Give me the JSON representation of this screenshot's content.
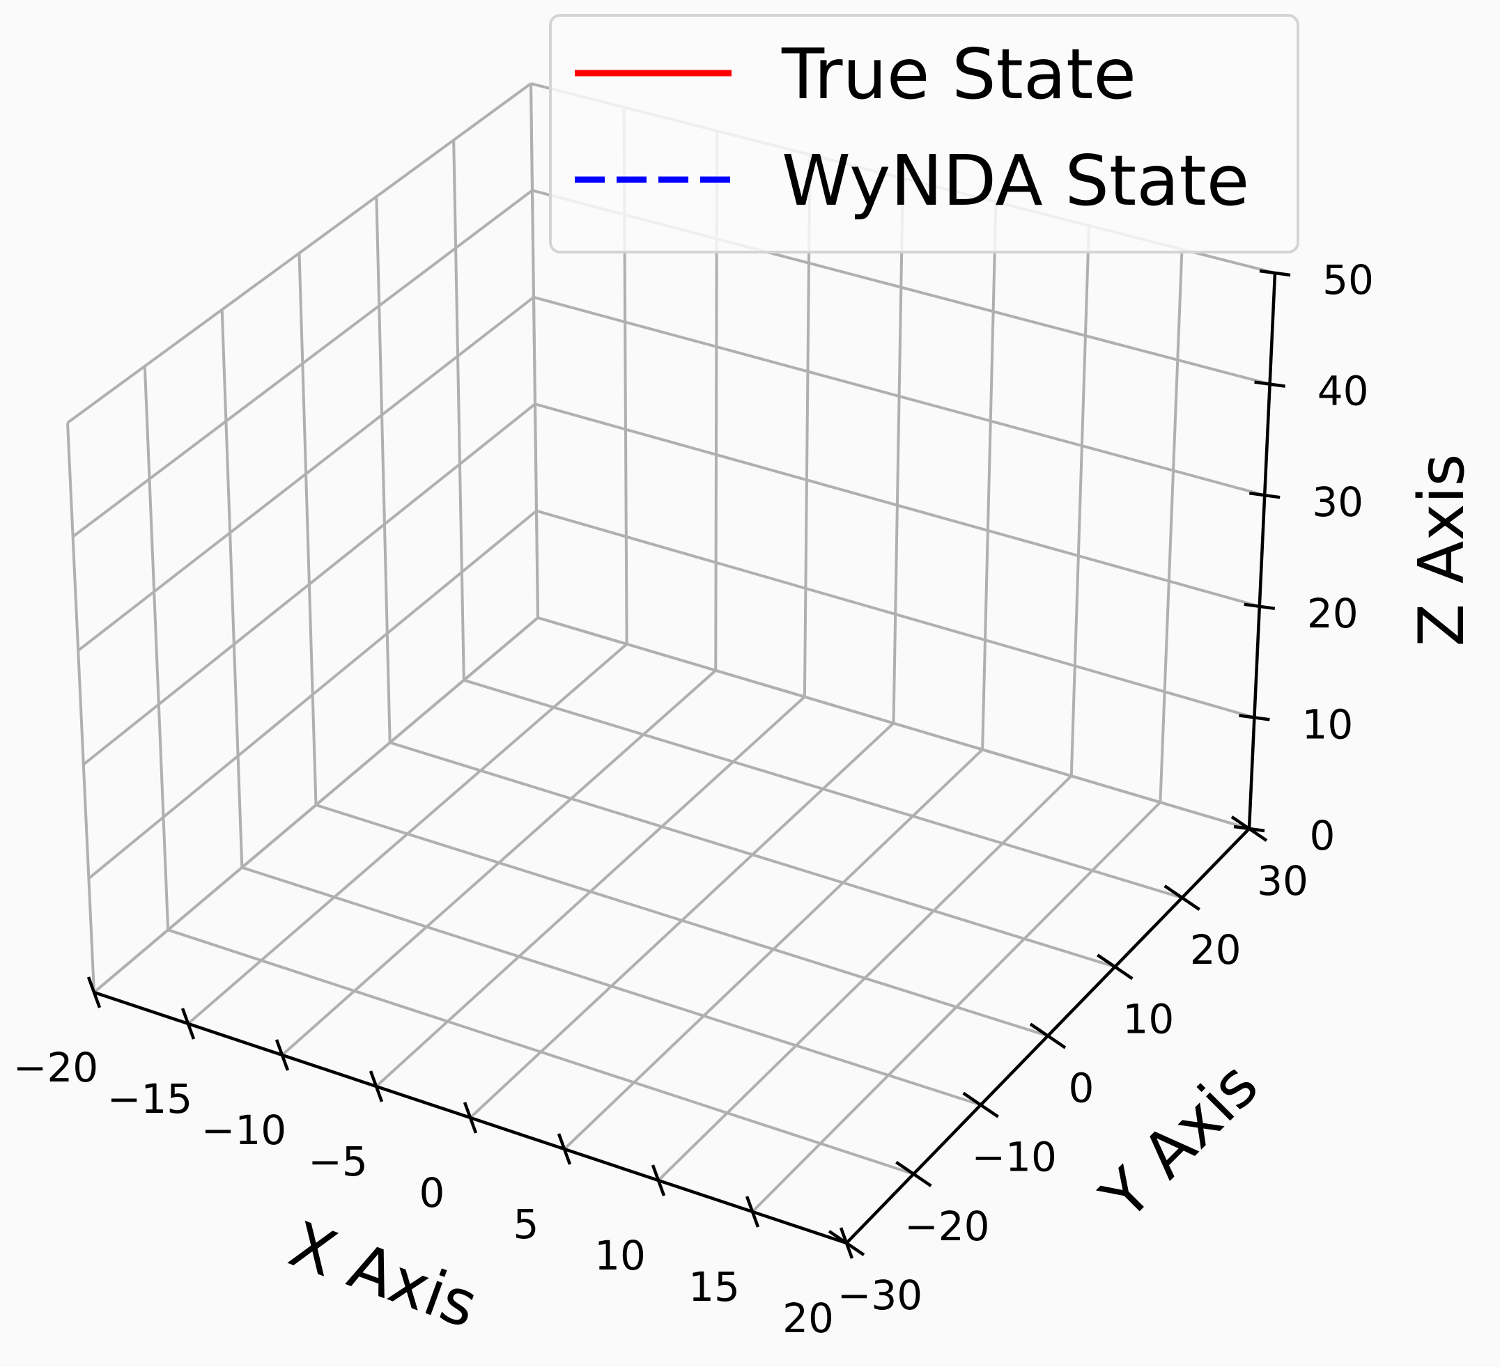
{
  "chart_data": {
    "type": "line",
    "projection": "3d",
    "xlabel": "X Axis",
    "ylabel": "Y Axis",
    "zlabel": "Z Axis",
    "xlim": [
      -20,
      20
    ],
    "ylim": [
      -30,
      30
    ],
    "zlim": [
      0,
      50
    ],
    "x_ticks": [
      "−20",
      "−15",
      "−10",
      "−5",
      "0",
      "5",
      "10",
      "15",
      "20"
    ],
    "y_ticks": [
      "−30",
      "−20",
      "−10",
      "0",
      "10",
      "20",
      "30"
    ],
    "z_ticks": [
      "0",
      "10",
      "20",
      "30",
      "40",
      "50"
    ],
    "grid": true,
    "legend_position": "top-right",
    "series": [
      {
        "name": "True State",
        "color": "#ff0000",
        "style": "solid",
        "points": []
      },
      {
        "name": "WyNDA State",
        "color": "#0000ff",
        "style": "dashed",
        "points": []
      }
    ]
  }
}
